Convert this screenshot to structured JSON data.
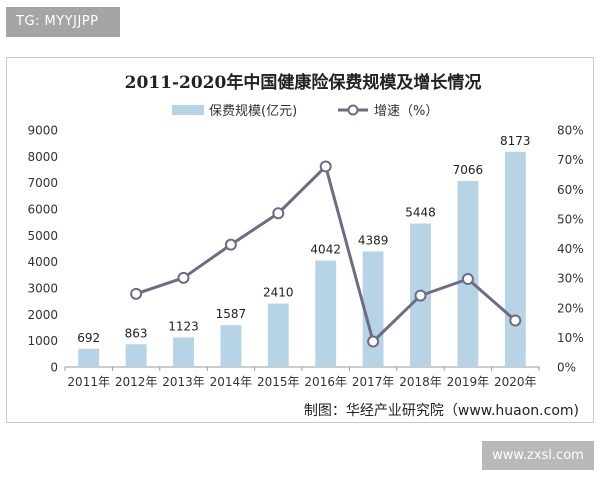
{
  "watermark_tag": "TG: MYYJJPP",
  "site_badge": "www.zxsl.com",
  "chart_data": {
    "type": "bar+line",
    "title": "2011-2020年中国健康险保费规模及增长情况",
    "categories": [
      "2011年",
      "2012年",
      "2013年",
      "2014年",
      "2015年",
      "2016年",
      "2017年",
      "2018年",
      "2019年",
      "2020年"
    ],
    "series": [
      {
        "name": "保费规模(亿元)",
        "type": "bar",
        "axis": "left",
        "color": "#b7d3e6",
        "values": [
          692,
          863,
          1123,
          1587,
          2410,
          4042,
          4389,
          5448,
          7066,
          8173
        ]
      },
      {
        "name": "增速（%）",
        "type": "line",
        "axis": "right",
        "color": "#6e6b85",
        "values": [
          null,
          24.7,
          30.1,
          41.3,
          51.9,
          67.7,
          8.6,
          24.1,
          29.7,
          15.7
        ]
      }
    ],
    "left_axis": {
      "min": 0,
      "max": 9000,
      "ticks": [
        "0",
        "1000",
        "2000",
        "3000",
        "4000",
        "5000",
        "6000",
        "7000",
        "8000",
        "9000"
      ]
    },
    "right_axis": {
      "min": 0,
      "max": 80,
      "ticks": [
        "0%",
        "10%",
        "20%",
        "30%",
        "40%",
        "50%",
        "60%",
        "70%",
        "80%"
      ]
    },
    "legend": {
      "position": "top-center",
      "bar_label": "保费规模(亿元)",
      "line_label": "增速（%）"
    },
    "source": "制图：华经产业研究院（www.huaon.com)"
  }
}
